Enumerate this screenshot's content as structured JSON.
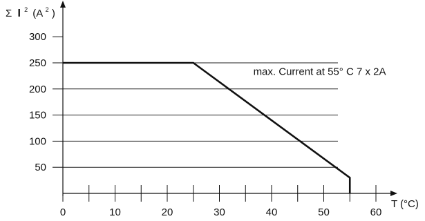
{
  "chart_data": {
    "type": "line",
    "title": "",
    "xlabel": "T (°C)",
    "ylabel_parts": {
      "sigma": "Σ",
      "symbol": "I",
      "symbol_exp": "2",
      "unit_open": "(A",
      "unit_exp": "2",
      "unit_close": ")"
    },
    "xlim": [
      0,
      60
    ],
    "ylim": [
      0,
      300
    ],
    "x_ticks": [
      0,
      5,
      10,
      15,
      20,
      25,
      30,
      35,
      40,
      45,
      50,
      55,
      60
    ],
    "x_tick_labels": [
      "0",
      "",
      "10",
      "",
      "20",
      "",
      "30",
      "",
      "40",
      "",
      "50",
      "",
      "60"
    ],
    "y_ticks": [
      50,
      100,
      150,
      200,
      250,
      300
    ],
    "y_tick_labels": [
      "50",
      "100",
      "150",
      "200",
      "250",
      "300"
    ],
    "grid": {
      "horizontal": true,
      "horizontal_values": [
        50,
        100,
        150,
        200,
        250
      ],
      "vertical": false
    },
    "series": [
      {
        "x": [
          0,
          25,
          55,
          55
        ],
        "y": [
          250,
          250,
          30,
          0
        ]
      }
    ],
    "annotations": [
      {
        "text": "max. Current at 55° C 7 x 2A",
        "x": 36.5,
        "y": 227
      }
    ]
  }
}
